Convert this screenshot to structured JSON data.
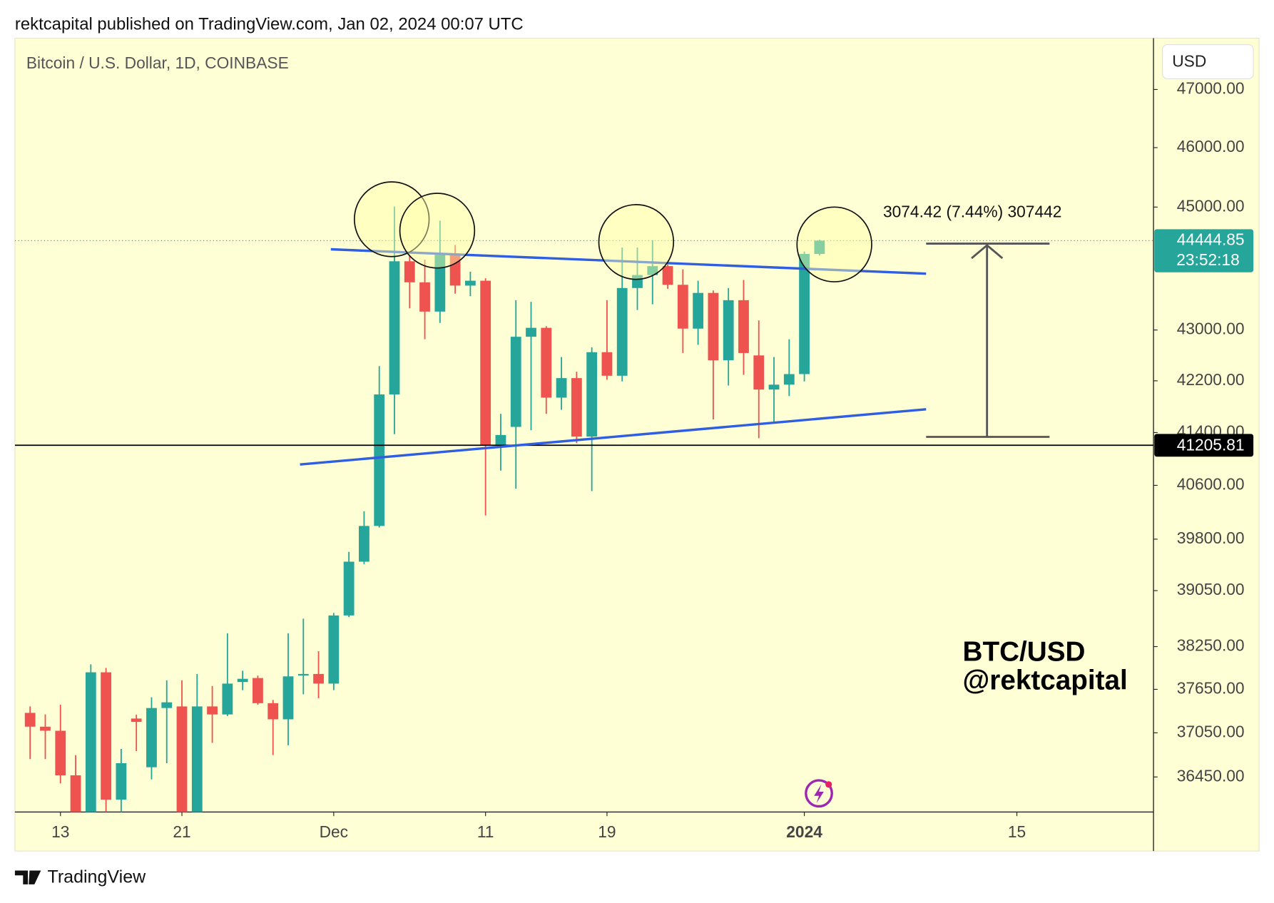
{
  "header": "rektcapital published on TradingView.com, Jan 02, 2024 00:07 UTC",
  "footer": "TradingView",
  "chart_data": {
    "type": "candlestick",
    "symbol": "Bitcoin / U.S. Dollar, 1D, COINBASE",
    "currency": "USD",
    "up_color": "#26a69a",
    "down_color": "#ef5350",
    "log_scale": true,
    "grid": false,
    "x": [
      "2023-11-11",
      "2023-11-12",
      "2023-11-13",
      "2023-11-14",
      "2023-11-15",
      "2023-11-16",
      "2023-11-17",
      "2023-11-18",
      "2023-11-19",
      "2023-11-20",
      "2023-11-21",
      "2023-11-22",
      "2023-11-23",
      "2023-11-24",
      "2023-11-25",
      "2023-11-26",
      "2023-11-27",
      "2023-11-28",
      "2023-11-29",
      "2023-11-30",
      "2023-12-01",
      "2023-12-02",
      "2023-12-03",
      "2023-12-04",
      "2023-12-05",
      "2023-12-06",
      "2023-12-07",
      "2023-12-08",
      "2023-12-09",
      "2023-12-10",
      "2023-12-11",
      "2023-12-12",
      "2023-12-13",
      "2023-12-14",
      "2023-12-15",
      "2023-12-16",
      "2023-12-17",
      "2023-12-18",
      "2023-12-19",
      "2023-12-20",
      "2023-12-21",
      "2023-12-22",
      "2023-12-23",
      "2023-12-24",
      "2023-12-25",
      "2023-12-26",
      "2023-12-27",
      "2023-12-28",
      "2023-12-29",
      "2023-12-30",
      "2023-12-31",
      "2024-01-01",
      "2024-01-02"
    ],
    "open": [
      37324,
      37134,
      37078,
      36472,
      35900,
      37888,
      36145,
      37246,
      36581,
      37391,
      37413,
      35900,
      37413,
      37302,
      37752,
      37808,
      37458,
      37235,
      37842,
      37865,
      37730,
      38693,
      39470,
      39995,
      41988,
      44107,
      43765,
      43294,
      44213,
      43712,
      43791,
      41214,
      41487,
      42893,
      43035,
      41938,
      42242,
      41338,
      42649,
      42279,
      43673,
      43883,
      44028,
      43725,
      43022,
      43594,
      42521,
      43477,
      42598,
      42064,
      42140,
      42305,
      44227
    ],
    "high": [
      37413,
      37302,
      37436,
      36746,
      38000,
      37950,
      36830,
      37300,
      37540,
      37775,
      37775,
      37865,
      37696,
      38438,
      37910,
      37842,
      37503,
      38438,
      38647,
      38185,
      38728,
      39614,
      40212,
      42431,
      45008,
      44200,
      44133,
      44775,
      44373,
      43937,
      43831,
      41687,
      43477,
      43451,
      43061,
      42573,
      42343,
      42726,
      43477,
      44333,
      44333,
      44453,
      44054,
      43976,
      43791,
      43633,
      43673,
      43804,
      43152,
      42573,
      42854,
      44267,
      44460
    ],
    "low": [
      36691,
      36691,
      36363,
      35800,
      35800,
      35900,
      35980,
      36800,
      36417,
      36636,
      35800,
      35800,
      36912,
      37280,
      37638,
      37436,
      36746,
      36880,
      37582,
      37526,
      37638,
      38670,
      39435,
      39971,
      41375,
      43346,
      42854,
      43113,
      43581,
      43541,
      40151,
      40822,
      40551,
      41437,
      41687,
      41750,
      41239,
      40514,
      42216,
      42190,
      43320,
      43411,
      43660,
      42636,
      42764,
      41600,
      42127,
      42292,
      41313,
      41562,
      41963,
      42190,
      44200
    ],
    "close": [
      37134,
      37078,
      36472,
      35900,
      37888,
      36145,
      36636,
      37200,
      37391,
      37470,
      35900,
      37413,
      37302,
      37730,
      37797,
      37458,
      37235,
      37831,
      37865,
      37730,
      38693,
      39470,
      39995,
      41988,
      44107,
      43765,
      43294,
      44213,
      43712,
      43791,
      41214,
      41363,
      42893,
      43035,
      41938,
      42242,
      41338,
      42649,
      42279,
      43673,
      43883,
      44028,
      43725,
      43022,
      43594,
      42521,
      43477,
      42636,
      42064,
      42140,
      42305,
      44227,
      44444.85
    ],
    "xlim": [
      "2023-11-10",
      "2024-01-24"
    ],
    "xticks": [
      {
        "value": "2023-11-13",
        "label": "13"
      },
      {
        "value": "2023-11-21",
        "label": "21"
      },
      {
        "value": "2023-12-01",
        "label": "Dec"
      },
      {
        "value": "2023-12-11",
        "label": "11"
      },
      {
        "value": "2023-12-19",
        "label": "19"
      },
      {
        "value": "2024-01-01",
        "label": "2024"
      },
      {
        "value": "2024-01-15",
        "label": "15"
      }
    ],
    "ylim": [
      35980,
      47900
    ],
    "yticks": [
      {
        "value": 36450,
        "label": "36450.00"
      },
      {
        "value": 37050,
        "label": "37050.00"
      },
      {
        "value": 37650,
        "label": "37650.00"
      },
      {
        "value": 38250,
        "label": "38250.00"
      },
      {
        "value": 39050,
        "label": "39050.00"
      },
      {
        "value": 39800,
        "label": "39800.00"
      },
      {
        "value": 40600,
        "label": "40600.00"
      },
      {
        "value": 41400,
        "label": "41400.00"
      },
      {
        "value": 42200,
        "label": "42200.00"
      },
      {
        "value": 43000,
        "label": "43000.00"
      },
      {
        "value": 45000,
        "label": "45000.00"
      },
      {
        "value": 46000,
        "label": "46000.00"
      },
      {
        "value": 47000,
        "label": "47000.00"
      }
    ],
    "horizontal_line": 41205.81,
    "last_price": 44444.85,
    "countdown": "23:52:18",
    "measure_label": "3074.42 (7.44%) 307442",
    "watermark": [
      "BTC/USD",
      "@rektcapital"
    ]
  }
}
